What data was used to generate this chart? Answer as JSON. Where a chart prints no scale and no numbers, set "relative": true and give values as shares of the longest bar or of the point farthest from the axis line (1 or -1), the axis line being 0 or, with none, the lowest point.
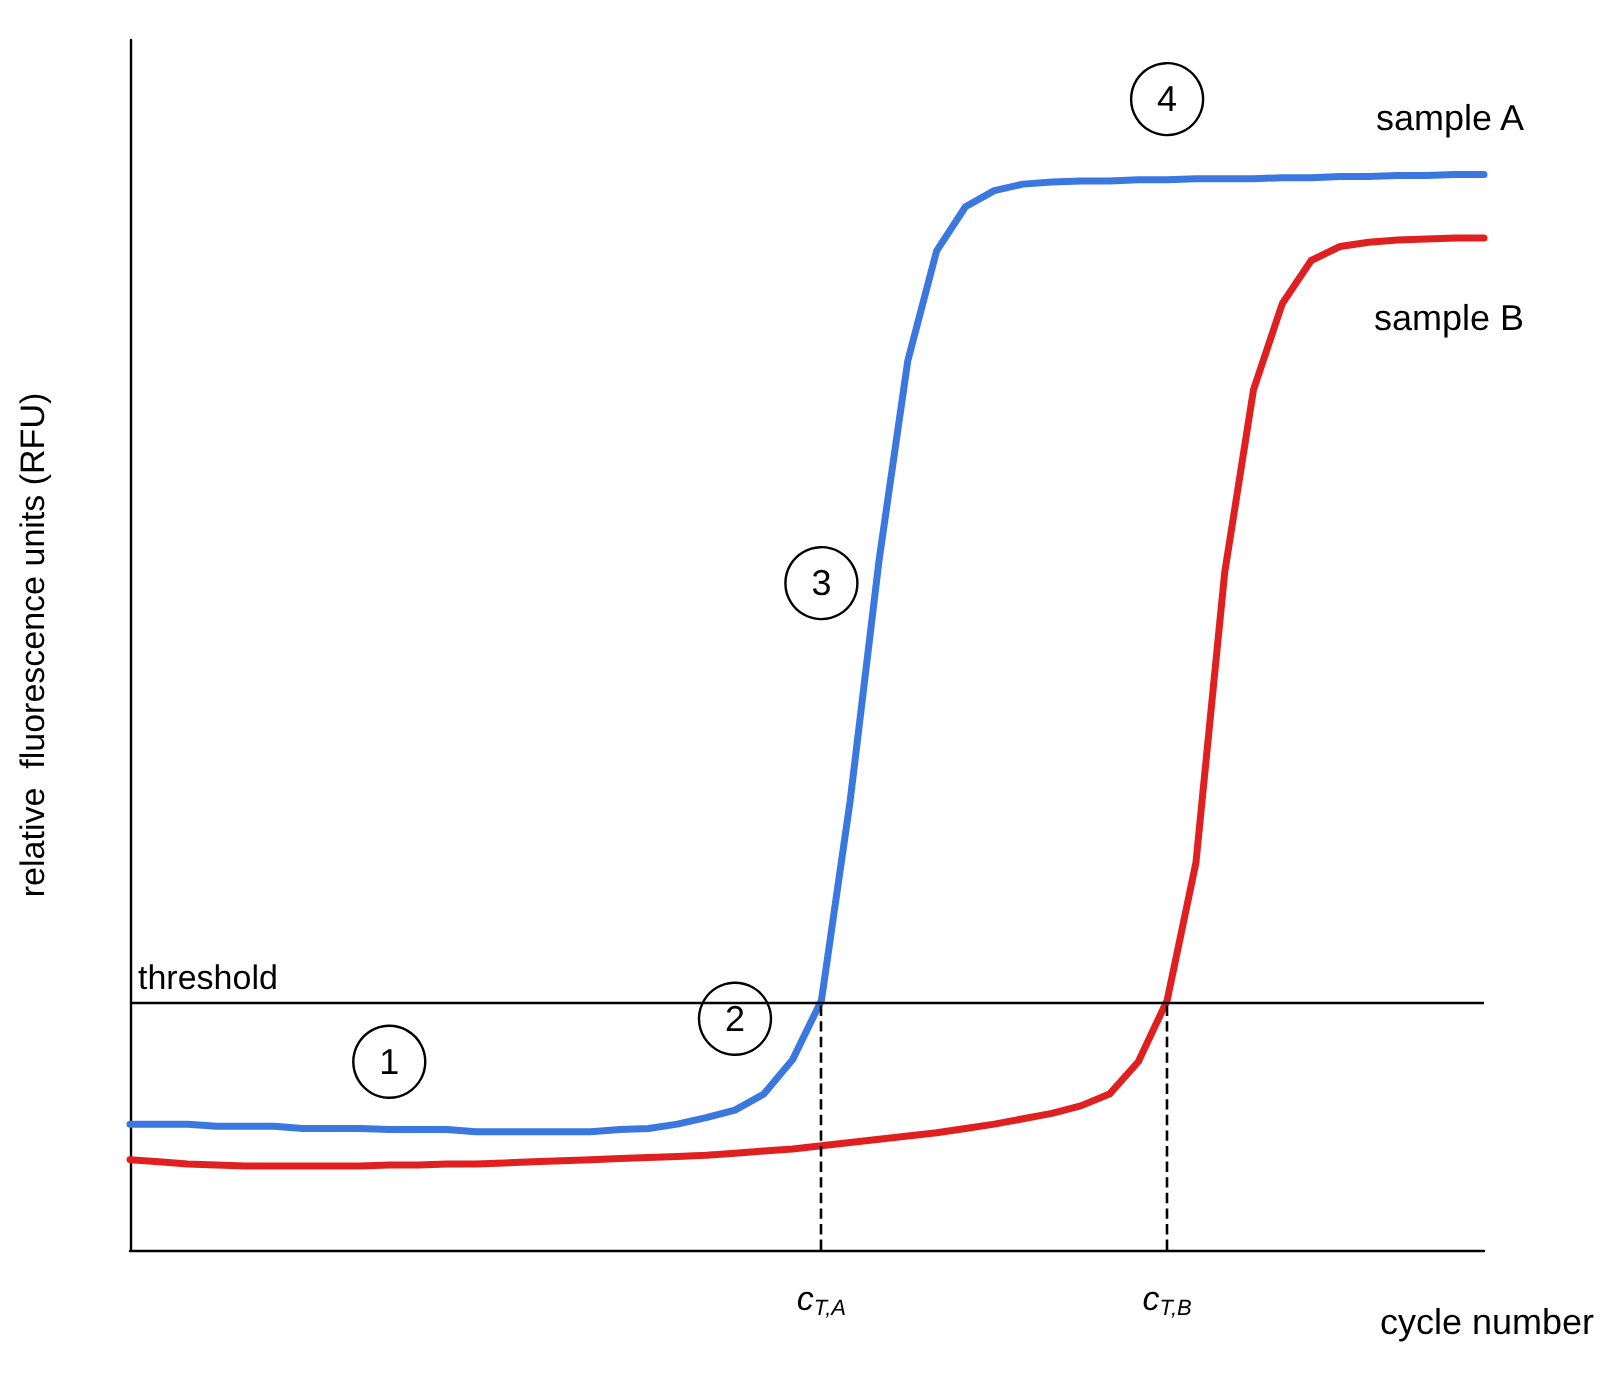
{
  "chart_data": {
    "type": "line",
    "relative": true,
    "xlabel": "cycle number",
    "ylabel": "relative  fluorescence units (RFU)",
    "categories": [
      null,
      null,
      null,
      null,
      null,
      null,
      null,
      null,
      null,
      null,
      null,
      null,
      null,
      null,
      null,
      null,
      null,
      null,
      null,
      null,
      null,
      null,
      null,
      null,
      "c$_{T,A}$",
      null,
      null,
      null,
      null,
      null,
      null,
      null,
      null,
      null,
      null,
      null,
      "c$_{T,B}$",
      null,
      null,
      null,
      null,
      null,
      null,
      null,
      null,
      null,
      null,
      null
    ],
    "series": [
      {
        "name": "sample A",
        "color": "#3a78e0",
        "values": [
          0.117,
          0.117,
          0.117,
          0.115,
          0.115,
          0.115,
          0.113,
          0.113,
          0.113,
          0.112,
          0.112,
          0.112,
          0.11,
          0.11,
          0.11,
          0.11,
          0.11,
          0.112,
          0.113,
          0.117,
          0.123,
          0.13,
          0.145,
          0.177,
          0.232,
          0.418,
          0.641,
          0.827,
          0.929,
          0.97,
          0.985,
          0.991,
          0.993,
          0.994,
          0.994,
          0.995,
          0.995,
          0.996,
          0.996,
          0.996,
          0.997,
          0.997,
          0.998,
          0.998,
          0.999,
          0.999,
          1.0,
          1.0
        ]
      },
      {
        "name": "sample B",
        "color": "#e02020",
        "values": [
          0.084,
          0.082,
          0.08,
          0.079,
          0.078,
          0.078,
          0.078,
          0.078,
          0.078,
          0.079,
          0.079,
          0.08,
          0.08,
          0.081,
          0.082,
          0.083,
          0.084,
          0.085,
          0.086,
          0.087,
          0.088,
          0.09,
          0.092,
          0.094,
          0.097,
          0.1,
          0.103,
          0.106,
          0.109,
          0.113,
          0.117,
          0.122,
          0.127,
          0.134,
          0.145,
          0.175,
          0.232,
          0.36,
          0.63,
          0.8,
          0.88,
          0.92,
          0.933,
          0.937,
          0.939,
          0.94,
          0.941,
          0.941
        ]
      }
    ],
    "ref_lines": [
      {
        "axis": "y",
        "value": 0.232,
        "label": "threshold",
        "color": "#000000",
        "line_style": "solid"
      },
      {
        "axis": "x",
        "value": "c$_{T,A}$",
        "color": "#000000",
        "line_style": "dashed"
      },
      {
        "axis": "x",
        "value": "c$_{T,B}$",
        "color": "#000000",
        "line_style": "dashed"
      }
    ],
    "annotations": [
      "1",
      "2",
      "3",
      "4"
    ],
    "grid": false,
    "legend": false,
    "marker": "none",
    "line_style": "solid"
  }
}
